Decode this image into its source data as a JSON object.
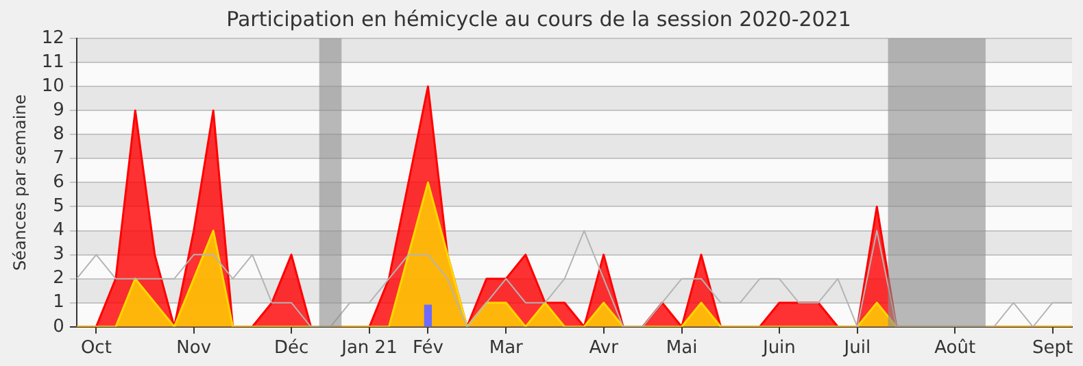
{
  "chart_data": {
    "type": "area",
    "title": "Participation en hémicycle au cours de la session 2020-2021",
    "ylabel": "Séances par semaine",
    "x": [
      "2020-09-28",
      "2020-10-05",
      "2020-10-12",
      "2020-10-19",
      "2020-10-26",
      "2020-11-02",
      "2020-11-09",
      "2020-11-16",
      "2020-11-23",
      "2020-11-30",
      "2020-12-07",
      "2020-12-14",
      "2020-12-21",
      "2020-12-28",
      "2021-01-04",
      "2021-01-11",
      "2021-01-18",
      "2021-01-25",
      "2021-02-01",
      "2021-02-08",
      "2021-02-15",
      "2021-02-22",
      "2021-03-01",
      "2021-03-08",
      "2021-03-15",
      "2021-03-22",
      "2021-03-29",
      "2021-04-05",
      "2021-04-12",
      "2021-04-19",
      "2021-04-26",
      "2021-05-03",
      "2021-05-10",
      "2021-05-17",
      "2021-05-24",
      "2021-05-31",
      "2021-06-07",
      "2021-06-14",
      "2021-06-21",
      "2021-06-28",
      "2021-07-05",
      "2021-07-12",
      "2021-07-19",
      "2021-07-26",
      "2021-08-02",
      "2021-08-09",
      "2021-08-16",
      "2021-08-23",
      "2021-08-30",
      "2021-09-06",
      "2021-09-13",
      "2021-09-20"
    ],
    "series": [
      {
        "color": "#ff0000",
        "values": [
          0,
          0,
          2,
          9,
          3,
          0,
          4,
          9,
          0,
          0,
          1,
          3,
          0,
          0,
          0,
          0,
          2,
          6,
          10,
          3,
          0,
          2,
          2,
          3,
          1,
          1,
          0,
          3,
          0,
          0,
          1,
          0,
          3,
          0,
          0,
          0,
          1,
          1,
          1,
          0,
          0,
          5,
          0,
          0,
          0,
          0,
          0,
          0,
          0,
          0,
          0,
          0
        ]
      },
      {
        "color": "#ffd700",
        "values": [
          0,
          0,
          0,
          2,
          1,
          0,
          2,
          4,
          0,
          0,
          0,
          0,
          0,
          0,
          0,
          0,
          0,
          3,
          6,
          3,
          0,
          1,
          1,
          0,
          1,
          0,
          0,
          1,
          0,
          0,
          0,
          0,
          1,
          0,
          0,
          0,
          0,
          0,
          0,
          0,
          0,
          1,
          0,
          0,
          0,
          0,
          0,
          0,
          0,
          0,
          0,
          0
        ]
      },
      {
        "type": "line",
        "color": "#b4b4b4",
        "values": [
          2,
          3,
          2,
          2,
          2,
          2,
          3,
          3,
          2,
          3,
          1,
          1,
          0,
          0,
          1,
          1,
          2,
          3,
          3,
          2,
          0,
          1,
          2,
          1,
          1,
          2,
          4,
          2,
          0,
          0,
          1,
          2,
          2,
          1,
          1,
          2,
          2,
          1,
          1,
          2,
          0,
          4,
          0,
          0,
          0,
          0,
          0,
          0,
          1,
          0,
          1,
          1
        ]
      },
      {
        "type": "bar",
        "color": "#6b6bff",
        "x": [
          "2021-02-01"
        ],
        "values": [
          0.9
        ]
      }
    ],
    "xlim": [
      "2020-09-28",
      "2021-09-20"
    ],
    "xticks": [
      {
        "value": "2020-10-05",
        "label": "Oct"
      },
      {
        "value": "2020-11-09",
        "label": "Nov"
      },
      {
        "value": "2020-12-14",
        "label": "Déc"
      },
      {
        "value": "2021-01-11",
        "label": "Jan 21"
      },
      {
        "value": "2021-02-01",
        "label": "Fév"
      },
      {
        "value": "2021-03-01",
        "label": "Mar"
      },
      {
        "value": "2021-04-05",
        "label": "Avr"
      },
      {
        "value": "2021-05-03",
        "label": "Mai"
      },
      {
        "value": "2021-06-07",
        "label": "Juin"
      },
      {
        "value": "2021-07-05",
        "label": "Juil"
      },
      {
        "value": "2021-08-09",
        "label": "Août"
      },
      {
        "value": "2021-09-13",
        "label": "Sept"
      }
    ],
    "ylim": [
      0,
      12
    ],
    "yticks": [
      0,
      1,
      2,
      3,
      4,
      5,
      6,
      7,
      8,
      9,
      10,
      11,
      12
    ],
    "bands": [
      {
        "axis": "x",
        "from": "2020-12-24",
        "to": "2021-01-01",
        "color": "#8c8c8c"
      },
      {
        "axis": "x",
        "from": "2021-07-16",
        "to": "2021-08-20",
        "color": "#8c8c8c"
      }
    ],
    "grid": "y",
    "legend": false,
    "marker": "none"
  }
}
